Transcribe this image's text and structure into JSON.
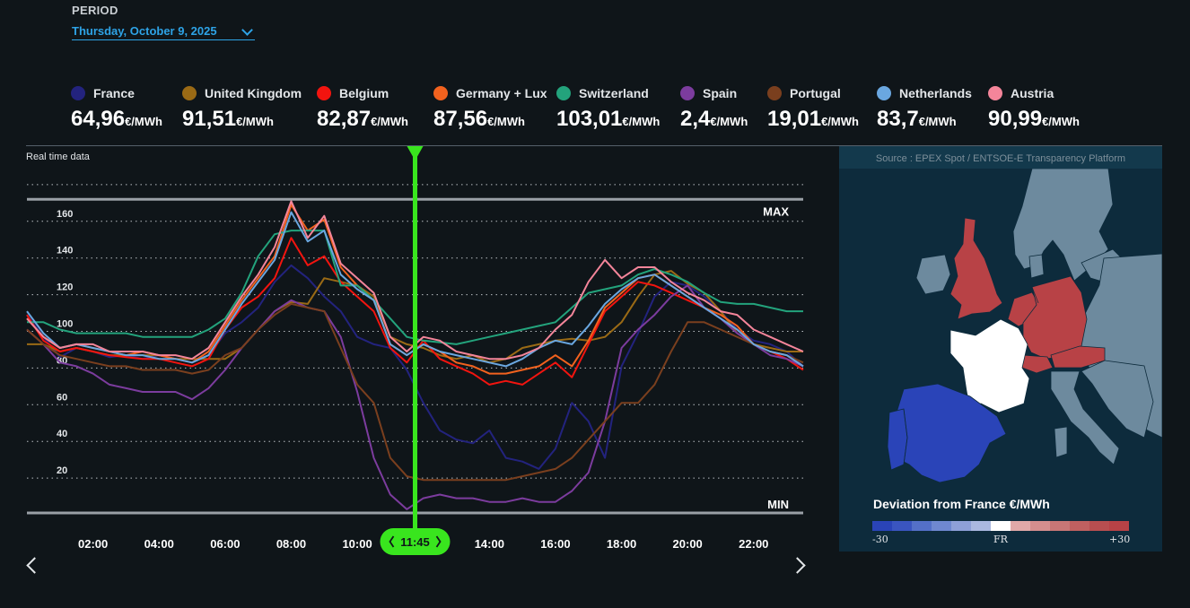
{
  "period": {
    "label": "PERIOD",
    "value": "Thursday, October 9, 2025"
  },
  "legend": [
    {
      "country": "France",
      "color": "#23237e",
      "value": "64,96",
      "unit": "€/MWh"
    },
    {
      "country": "United Kingdom",
      "color": "#9a6a15",
      "value": "91,51",
      "unit": "€/MWh"
    },
    {
      "country": "Belgium",
      "color": "#f2140f",
      "value": "82,87",
      "unit": "€/MWh"
    },
    {
      "country": "Germany + Lux",
      "color": "#f2621e",
      "value": "87,56",
      "unit": "€/MWh"
    },
    {
      "country": "Switzerland",
      "color": "#23a37c",
      "value": "103,01",
      "unit": "€/MWh"
    },
    {
      "country": "Spain",
      "color": "#7c3c9e",
      "value": "2,4",
      "unit": "€/MWh"
    },
    {
      "country": "Portugal",
      "color": "#7a3f1e",
      "value": "19,01",
      "unit": "€/MWh"
    },
    {
      "country": "Netherlands",
      "color": "#6aa7e0",
      "value": "83,7",
      "unit": "€/MWh"
    },
    {
      "country": "Austria",
      "color": "#f4859a",
      "value": "90,99",
      "unit": "€/MWh"
    }
  ],
  "chart_label": "Real time data",
  "cursor": {
    "time": "11:45"
  },
  "chart_data": {
    "type": "line",
    "x": [
      "00:00",
      "00:30",
      "01:00",
      "01:30",
      "02:00",
      "02:30",
      "03:00",
      "03:30",
      "04:00",
      "04:30",
      "05:00",
      "05:30",
      "06:00",
      "06:30",
      "07:00",
      "07:30",
      "08:00",
      "08:30",
      "09:00",
      "09:30",
      "10:00",
      "10:30",
      "11:00",
      "11:30",
      "12:00",
      "12:30",
      "13:00",
      "13:30",
      "14:00",
      "14:30",
      "15:00",
      "15:30",
      "16:00",
      "16:30",
      "17:00",
      "17:30",
      "18:00",
      "18:30",
      "19:00",
      "19:30",
      "20:00",
      "20:30",
      "21:00",
      "21:30",
      "22:00",
      "22:30",
      "23:00",
      "23:30"
    ],
    "x_ticks": [
      "02:00",
      "04:00",
      "06:00",
      "08:00",
      "10:00",
      "12:00",
      "14:00",
      "16:00",
      "18:00",
      "20:00",
      "22:00"
    ],
    "y_ticks": [
      20,
      40,
      60,
      80,
      100,
      120,
      140,
      160
    ],
    "ylim": [
      0,
      175
    ],
    "max_label": "MAX",
    "min_label": "MIN",
    "max_value": 171,
    "min_value": 0,
    "grid": true,
    "series": [
      {
        "name": "France",
        "color": "#23237e",
        "values": [
          108,
          96,
          85,
          90,
          88,
          85,
          86,
          84,
          86,
          84,
          82,
          86,
          98,
          104,
          112,
          126,
          135,
          128,
          118,
          110,
          96,
          92,
          90,
          78,
          60,
          45,
          40,
          38,
          45,
          30,
          28,
          24,
          35,
          60,
          50,
          30,
          80,
          98,
          118,
          126,
          124,
          118,
          110,
          100,
          94,
          92,
          88,
          80
        ]
      },
      {
        "name": "United Kingdom",
        "color": "#9a6a15",
        "values": [
          92,
          92,
          88,
          90,
          88,
          86,
          86,
          86,
          86,
          84,
          84,
          84,
          84,
          90,
          100,
          110,
          115,
          114,
          128,
          126,
          124,
          118,
          96,
          92,
          90,
          86,
          84,
          86,
          82,
          84,
          90,
          92,
          94,
          95,
          94,
          96,
          104,
          118,
          130,
          132,
          125,
          120,
          110,
          98,
          92,
          90,
          88,
          88
        ]
      },
      {
        "name": "Belgium",
        "color": "#f2140f",
        "values": [
          108,
          94,
          88,
          90,
          88,
          86,
          85,
          84,
          84,
          82,
          80,
          84,
          100,
          112,
          118,
          128,
          150,
          135,
          140,
          126,
          118,
          110,
          90,
          82,
          94,
          84,
          80,
          76,
          70,
          72,
          70,
          76,
          82,
          74,
          92,
          110,
          118,
          126,
          124,
          120,
          116,
          112,
          106,
          100,
          92,
          88,
          84,
          78
        ]
      },
      {
        "name": "Germany + Lux",
        "color": "#f2621e",
        "values": [
          106,
          96,
          90,
          92,
          90,
          88,
          86,
          88,
          86,
          84,
          82,
          88,
          102,
          116,
          128,
          140,
          168,
          154,
          160,
          134,
          124,
          116,
          92,
          86,
          92,
          88,
          82,
          80,
          76,
          76,
          78,
          80,
          86,
          80,
          94,
          112,
          120,
          128,
          130,
          124,
          118,
          112,
          108,
          102,
          92,
          88,
          86,
          80
        ]
      },
      {
        "name": "Switzerland",
        "color": "#23a37c",
        "values": [
          104,
          104,
          100,
          98,
          98,
          98,
          98,
          96,
          96,
          96,
          96,
          100,
          106,
          120,
          140,
          152,
          154,
          154,
          154,
          124,
          124,
          116,
          106,
          96,
          94,
          93,
          92,
          94,
          96,
          98,
          100,
          102,
          104,
          112,
          120,
          122,
          124,
          130,
          133,
          130,
          126,
          120,
          115,
          114,
          114,
          112,
          110,
          110
        ]
      },
      {
        "name": "Spain",
        "color": "#7c3c9e",
        "values": [
          100,
          92,
          82,
          80,
          76,
          70,
          68,
          66,
          66,
          66,
          62,
          68,
          78,
          90,
          100,
          110,
          116,
          112,
          110,
          96,
          66,
          30,
          10,
          2,
          8,
          10,
          8,
          8,
          6,
          6,
          8,
          6,
          6,
          12,
          22,
          50,
          90,
          100,
          108,
          118,
          124,
          112,
          106,
          98,
          92,
          86,
          84,
          80
        ]
      },
      {
        "name": "Portugal",
        "color": "#7a3f1e",
        "values": [
          100,
          92,
          86,
          84,
          82,
          80,
          80,
          78,
          78,
          78,
          76,
          78,
          86,
          90,
          100,
          108,
          114,
          112,
          110,
          90,
          70,
          60,
          30,
          20,
          18,
          18,
          18,
          18,
          18,
          18,
          20,
          22,
          24,
          30,
          40,
          50,
          60,
          60,
          70,
          88,
          104,
          104,
          100,
          96,
          92,
          88,
          86,
          82
        ]
      },
      {
        "name": "Netherlands",
        "color": "#6aa7e0",
        "values": [
          110,
          98,
          90,
          92,
          90,
          88,
          86,
          86,
          84,
          84,
          82,
          86,
          100,
          114,
          126,
          138,
          164,
          148,
          154,
          130,
          122,
          116,
          92,
          86,
          92,
          88,
          86,
          84,
          82,
          80,
          84,
          90,
          94,
          92,
          102,
          114,
          122,
          128,
          130,
          124,
          118,
          112,
          106,
          100,
          92,
          88,
          86,
          80
        ]
      },
      {
        "name": "Austria",
        "color": "#f4859a",
        "values": [
          106,
          96,
          90,
          92,
          92,
          88,
          88,
          88,
          86,
          86,
          84,
          90,
          104,
          118,
          130,
          145,
          170,
          150,
          162,
          136,
          128,
          120,
          96,
          88,
          96,
          94,
          88,
          86,
          84,
          84,
          86,
          90,
          100,
          108,
          126,
          138,
          128,
          134,
          134,
          126,
          120,
          116,
          110,
          108,
          100,
          96,
          92,
          88
        ]
      }
    ]
  },
  "map": {
    "source": "Source : EPEX Spot / ENTSOE-E Transparency Platform",
    "title": "Deviation from France €/MWh",
    "scale_min": "-30",
    "scale_mid": "FR",
    "scale_max": "+30",
    "colors": {
      "france": "#ffffff",
      "spain": "#2a44b8",
      "high": "#b84246",
      "other": "#6d8a9e",
      "sea": "#0d2b3c"
    },
    "scale_colors": [
      "#2a44b8",
      "#3a55c0",
      "#5470c8",
      "#6f88d0",
      "#8ea0d8",
      "#aab8e0",
      "#ffffff",
      "#e0a8a8",
      "#d48e8e",
      "#c87676",
      "#bf6060",
      "#b84e50",
      "#b84246"
    ]
  }
}
